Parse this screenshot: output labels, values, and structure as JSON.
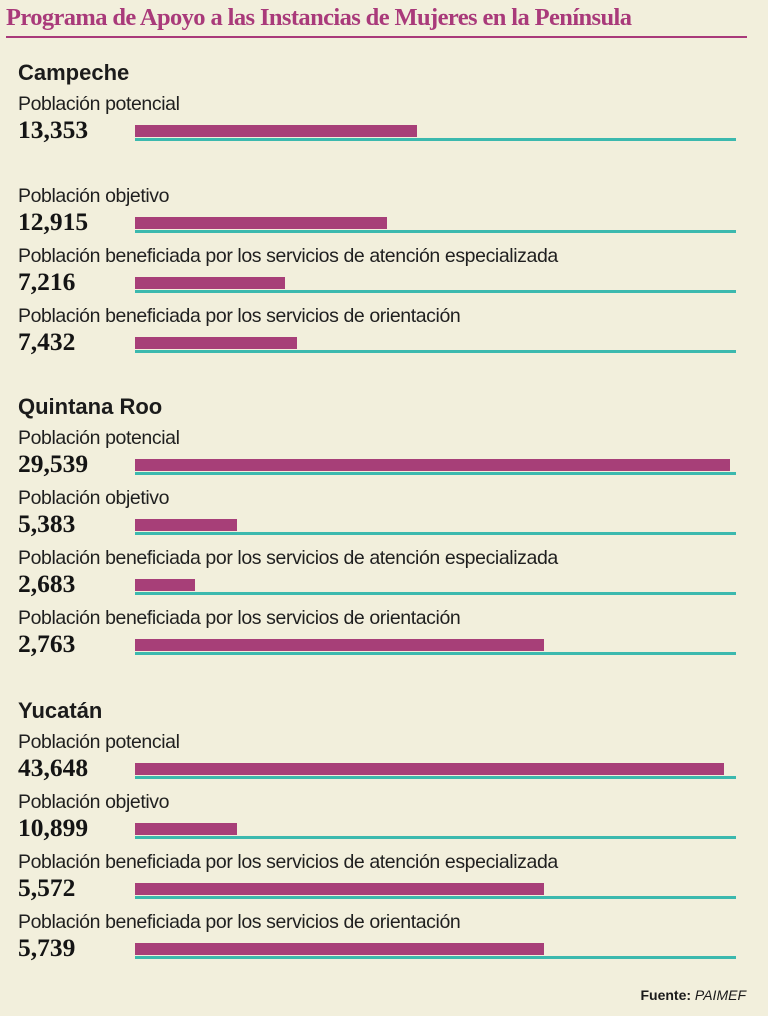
{
  "chart_data": {
    "type": "bar",
    "title": "Programa de Apoyo a las Instancias de Mujeres en la Península",
    "source_label": "Fuente:",
    "source_name": "PAIMEF",
    "colors": {
      "bar": "#a73f78",
      "track": "#3cb9ae",
      "title": "#a93a7a",
      "background": "#f2efdc"
    },
    "regions": [
      {
        "name": "Campeche",
        "metrics": [
          {
            "label": "Población potencial",
            "value_text": "13,353",
            "value": 13353,
            "bar_fraction": 0.47
          },
          {
            "label": "Población objetivo",
            "value_text": "12,915",
            "value": 12915,
            "bar_fraction": 0.42
          },
          {
            "label": "Población beneficiada por los servicios de atención especializada",
            "value_text": "7,216",
            "value": 7216,
            "bar_fraction": 0.25
          },
          {
            "label": "Población beneficiada por los servicios de orientación",
            "value_text": "7,432",
            "value": 7432,
            "bar_fraction": 0.27
          }
        ]
      },
      {
        "name": "Quintana Roo",
        "metrics": [
          {
            "label": "Población potencial",
            "value_text": "29,539",
            "value": 29539,
            "bar_fraction": 0.99
          },
          {
            "label": "Población objetivo",
            "value_text": "5,383",
            "value": 5383,
            "bar_fraction": 0.17
          },
          {
            "label": "Población beneficiada por los servicios de atención especializada",
            "value_text": "2,683",
            "value": 2683,
            "bar_fraction": 0.1
          },
          {
            "label": "Población beneficiada por los servicios de orientación",
            "value_text": "2,763",
            "value": 2763,
            "bar_fraction": 0.68
          }
        ]
      },
      {
        "name": "Yucatán",
        "metrics": [
          {
            "label": "Población potencial",
            "value_text": "43,648",
            "value": 43648,
            "bar_fraction": 0.98
          },
          {
            "label": "Población objetivo",
            "value_text": "10,899",
            "value": 10899,
            "bar_fraction": 0.17
          },
          {
            "label": "Población beneficiada por los servicios de atención especializada",
            "value_text": "5,572",
            "value": 5572,
            "bar_fraction": 0.68
          },
          {
            "label": "Población beneficiada por los servicios de orientación",
            "value_text": "5,739",
            "value": 5739,
            "bar_fraction": 0.68
          }
        ]
      }
    ]
  }
}
